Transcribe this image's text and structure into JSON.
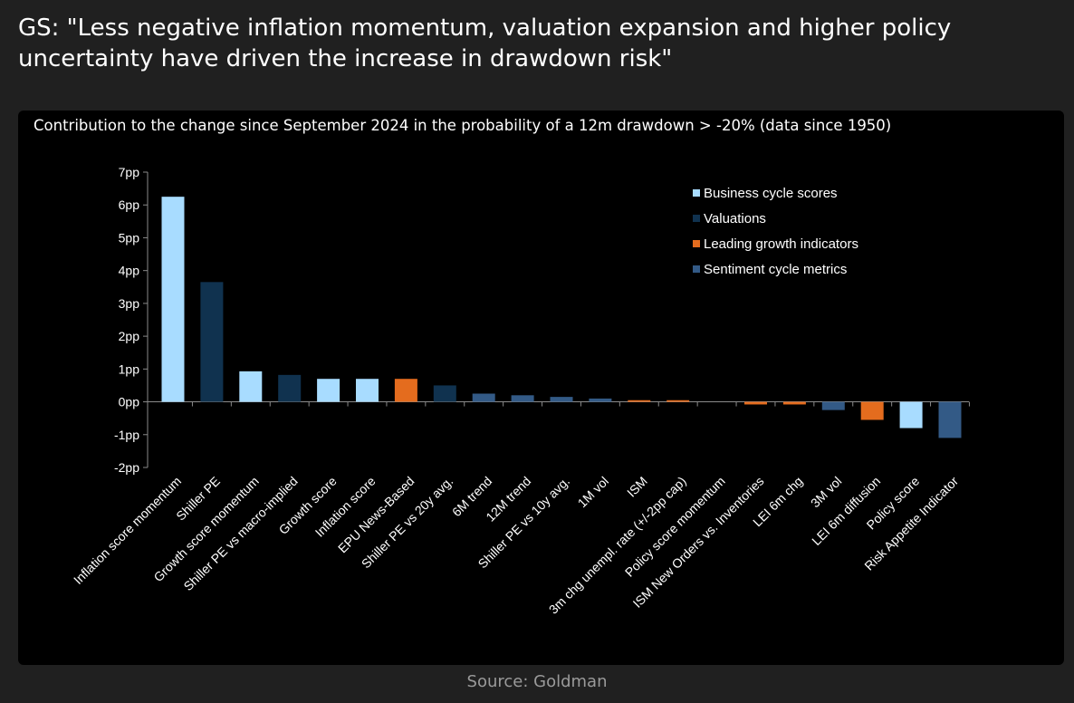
{
  "headline": "GS: \"Less negative inflation momentum, valuation expansion and higher policy uncertainty have driven the increase in drawdown risk\"",
  "source": "Source: Goldman",
  "colors": {
    "Business cycle scores": "#a8dcff",
    "Valuations": "#10324f",
    "Leading growth indicators": "#e46c1e",
    "Sentiment cycle metrics": "#335a86"
  },
  "chart_data": {
    "type": "bar",
    "title": "Contribution to the change since September 2024 in the probability of a 12m drawdown > -20% (data since 1950)",
    "ylim": [
      -2,
      7
    ],
    "yticks": [
      -2,
      -1,
      0,
      1,
      2,
      3,
      4,
      5,
      6,
      7
    ],
    "ytick_labels": [
      "-2pp",
      "-1pp",
      "0pp",
      "1pp",
      "2pp",
      "3pp",
      "4pp",
      "5pp",
      "6pp",
      "7pp"
    ],
    "grid": false,
    "legend_position": "top-right",
    "legend": [
      "Business cycle scores",
      "Valuations",
      "Leading growth indicators",
      "Sentiment cycle metrics"
    ],
    "categories": [
      "Inflation score momentum",
      "Shiller PE",
      "Growth score momentum",
      "Shiller PE vs macro-implied",
      "Growth score",
      "Inflation score",
      "EPU News-Based",
      "Shiller PE vs 20y avg.",
      "6M trend",
      "12M trend",
      "Shiller PE vs 10y avg.",
      "1M vol",
      "ISM",
      "3m chg unempl. rate (+/-2pp cap)",
      "Policy score momentum",
      "ISM New Orders vs. Inventories",
      "LEI 6m chg",
      "3M vol",
      "LEI 6m diffusion",
      "Policy score",
      "Risk Appetite Indicator"
    ],
    "values": [
      6.25,
      3.65,
      0.93,
      0.82,
      0.7,
      0.7,
      0.7,
      0.5,
      0.25,
      0.2,
      0.15,
      0.1,
      0.05,
      0.05,
      0.0,
      -0.08,
      -0.08,
      -0.25,
      -0.55,
      -0.8,
      -1.1
    ],
    "groups": [
      "Business cycle scores",
      "Valuations",
      "Business cycle scores",
      "Valuations",
      "Business cycle scores",
      "Business cycle scores",
      "Leading growth indicators",
      "Valuations",
      "Sentiment cycle metrics",
      "Sentiment cycle metrics",
      "Sentiment cycle metrics",
      "Sentiment cycle metrics",
      "Leading growth indicators",
      "Leading growth indicators",
      "Business cycle scores",
      "Leading growth indicators",
      "Leading growth indicators",
      "Sentiment cycle metrics",
      "Leading growth indicators",
      "Business cycle scores",
      "Sentiment cycle metrics"
    ]
  }
}
